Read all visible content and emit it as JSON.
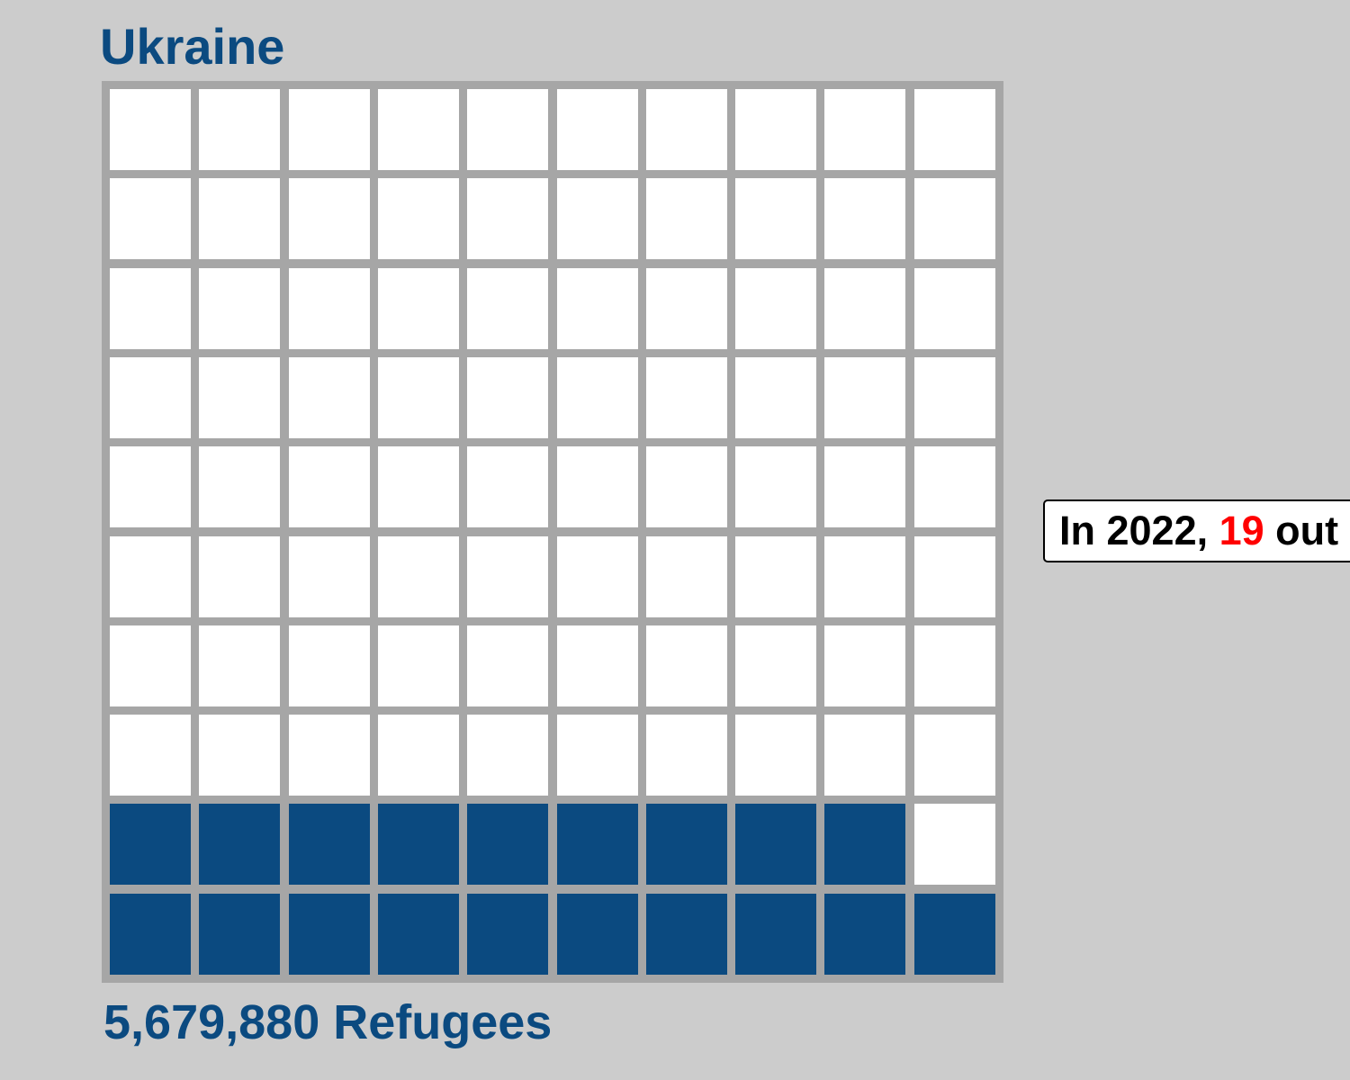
{
  "chart_data": {
    "type": "waffle",
    "title": "Ukraine",
    "total_cells": 100,
    "grid_rows": 10,
    "grid_cols": 10,
    "filled_cells": 19,
    "fill_order": "bottom-up, left-to-right",
    "caption": "5,679,880 Refugees",
    "tooltip": {
      "prefix": "In 2022, ",
      "highlight": "19",
      "suffix": " out"
    }
  },
  "colors": {
    "background": "#cccccc",
    "filled": "#0b4a80",
    "empty": "#ffffff",
    "grid": "#a6a6a6",
    "highlight": "#ff0000"
  }
}
